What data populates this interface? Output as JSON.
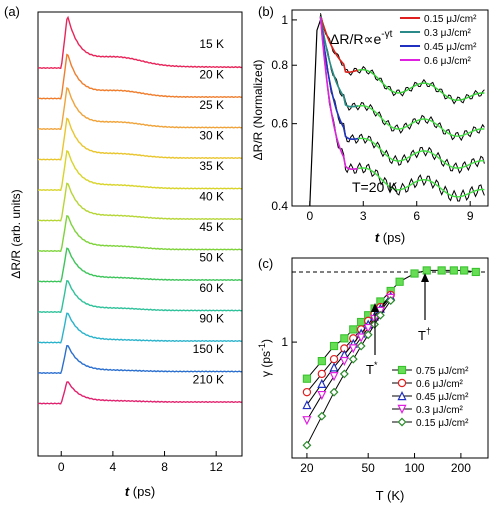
{
  "chart_data": [
    {
      "panel_label": "(a)",
      "type": "line",
      "ylabel": "ΔR/R (arb. units)",
      "xlabel_italic": "t",
      "xlabel_unit": " (ps)",
      "xlim": [
        -1.8,
        14
      ],
      "xticks": [
        0,
        4,
        8,
        12
      ],
      "traces": [
        {
          "label": "15 K",
          "color": "#e8255a",
          "peak": 50,
          "bump": 8,
          "offset": 0
        },
        {
          "label": "20 K",
          "color": "#f07d2c",
          "peak": 45,
          "bump": 6,
          "offset": 0.09
        },
        {
          "label": "25 K",
          "color": "#f0a33a",
          "peak": 42,
          "bump": 5,
          "offset": 0.18
        },
        {
          "label": "30 K",
          "color": "#e9c52e",
          "peak": 42,
          "bump": 4,
          "offset": 0.27
        },
        {
          "label": "35 K",
          "color": "#d8d42a",
          "peak": 40,
          "bump": 3,
          "offset": 0.36
        },
        {
          "label": "40 K",
          "color": "#b6d637",
          "peak": 38,
          "bump": 3,
          "offset": 0.45
        },
        {
          "label": "45 K",
          "color": "#7ed33b",
          "peak": 36,
          "bump": 3,
          "offset": 0.54
        },
        {
          "label": "50 K",
          "color": "#3dc45a",
          "peak": 34,
          "bump": 2,
          "offset": 0.63
        },
        {
          "label": "60 K",
          "color": "#2ec19a",
          "peak": 32,
          "bump": 2,
          "offset": 0.72
        },
        {
          "label": "90 K",
          "color": "#2ab3cb",
          "peak": 30,
          "bump": 1,
          "offset": 0.81
        },
        {
          "label": "150 K",
          "color": "#2b6fcf",
          "peak": 28,
          "bump": 1,
          "offset": 0.9
        },
        {
          "label": "210 K",
          "color": "#e0236e",
          "peak": 22,
          "bump": 1,
          "offset": 0.99
        }
      ]
    },
    {
      "panel_label": "(b)",
      "type": "line",
      "yscale": "log",
      "ylabel": "ΔR/R (Normalized)",
      "xlabel_italic": "t",
      "xlabel_unit": " (ps)",
      "xlim": [
        -1,
        10
      ],
      "ylim": [
        0.4,
        1.05
      ],
      "xticks": [
        0,
        3,
        6,
        9
      ],
      "yticks": [
        0.4,
        0.6,
        0.8,
        1
      ],
      "ytick_labels": [
        "0.4",
        "0.6",
        "0.8",
        "1"
      ],
      "equation": "ΔR/R∝e",
      "equation_exp": "-γt",
      "annotation": "T=20 K",
      "series": [
        {
          "name": "0.15  μJ/cm²",
          "color": "#e02020",
          "level": 0.74
        },
        {
          "name": "0.3  μJ/cm²",
          "color": "#2a8a8a",
          "level": 0.62
        },
        {
          "name": "0.45  μJ/cm²",
          "color": "#2030c0",
          "level": 0.53
        },
        {
          "name": "0.6  μJ/cm²",
          "color": "#e020e0",
          "level": 0.46
        }
      ]
    },
    {
      "panel_label": "(c)",
      "type": "scatter",
      "xscale": "log",
      "yscale": "log",
      "ylabel": "γ (ps",
      "ylabel_sup": "-1",
      "ylabel_end": ")",
      "xlabel": "T (K)",
      "xlim": [
        16,
        300
      ],
      "ylim": [
        0.22,
        3.0
      ],
      "xticks": [
        20,
        50,
        100,
        200
      ],
      "yticks": [
        1
      ],
      "plateau": 2.5,
      "annotations": {
        "tstar": "T",
        "tstar_sup": "*",
        "tdagger": "T",
        "tdagger_sup": "†"
      },
      "series": [
        {
          "name": "0.75  μJ/cm²",
          "color": "#35c02a",
          "marker": "square",
          "x": [
            20,
            25,
            30,
            35,
            40,
            45,
            50,
            55,
            60,
            70,
            80,
            100,
            120,
            150,
            180,
            210,
            250
          ],
          "y": [
            0.62,
            0.78,
            0.95,
            1.05,
            1.18,
            1.3,
            1.42,
            1.55,
            1.7,
            1.95,
            2.2,
            2.45,
            2.55,
            2.55,
            2.55,
            2.55,
            2.5
          ]
        },
        {
          "name": "0.6  μJ/cm²",
          "color": "#e02020",
          "marker": "circle",
          "x": [
            20,
            25,
            30,
            35,
            40,
            45,
            50,
            55,
            60,
            70
          ],
          "y": [
            0.52,
            0.66,
            0.8,
            0.92,
            1.05,
            1.18,
            1.32,
            1.45,
            1.58,
            1.85
          ]
        },
        {
          "name": "0.45  μJ/cm²",
          "color": "#2030c0",
          "marker": "triangle",
          "x": [
            20,
            25,
            30,
            35,
            40,
            45,
            50,
            55,
            60,
            70
          ],
          "y": [
            0.44,
            0.58,
            0.72,
            0.85,
            0.98,
            1.12,
            1.26,
            1.4,
            1.55,
            1.82
          ]
        },
        {
          "name": "0.3  μJ/cm²",
          "color": "#e020e0",
          "marker": "tri-down",
          "x": [
            20,
            25,
            30,
            35,
            40,
            45,
            50,
            55,
            60,
            70
          ],
          "y": [
            0.36,
            0.5,
            0.64,
            0.78,
            0.92,
            1.06,
            1.2,
            1.35,
            1.5,
            1.78
          ]
        },
        {
          "name": "0.15  μJ/cm²",
          "color": "#2a8a2a",
          "marker": "diamond",
          "x": [
            20,
            25,
            30,
            35,
            40,
            45,
            50,
            55,
            60,
            70
          ],
          "y": [
            0.26,
            0.38,
            0.52,
            0.66,
            0.8,
            0.95,
            1.1,
            1.26,
            1.42,
            1.72
          ]
        }
      ]
    }
  ]
}
